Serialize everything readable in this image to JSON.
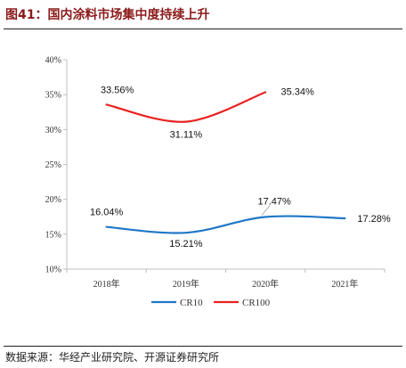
{
  "header": {
    "title": "图41：国内涂料市场集中度持续上升"
  },
  "footer": {
    "source": "数据来源：华经产业研究院、开源证券研究所"
  },
  "colors": {
    "title": "#8b1a1a",
    "cr10": "#1f77c8",
    "cr100": "#e8231f",
    "axis": "#bfbfbf"
  },
  "chart_data": {
    "type": "line",
    "categories": [
      "2018年",
      "2019年",
      "2020年",
      "2021年"
    ],
    "ylim": [
      10,
      40
    ],
    "ytick_step": 5,
    "ytick_suffix": "%",
    "grid": false,
    "legend_position": "bottom",
    "series": [
      {
        "name": "CR10",
        "values": [
          16.04,
          15.21,
          17.47,
          17.28
        ],
        "labels": [
          "16.04%",
          "15.21%",
          "17.47%",
          "17.28%"
        ]
      },
      {
        "name": "CR100",
        "values": [
          33.56,
          31.11,
          35.34,
          null
        ],
        "labels": [
          "33.56%",
          "31.11%",
          "35.34%",
          null
        ]
      }
    ]
  }
}
